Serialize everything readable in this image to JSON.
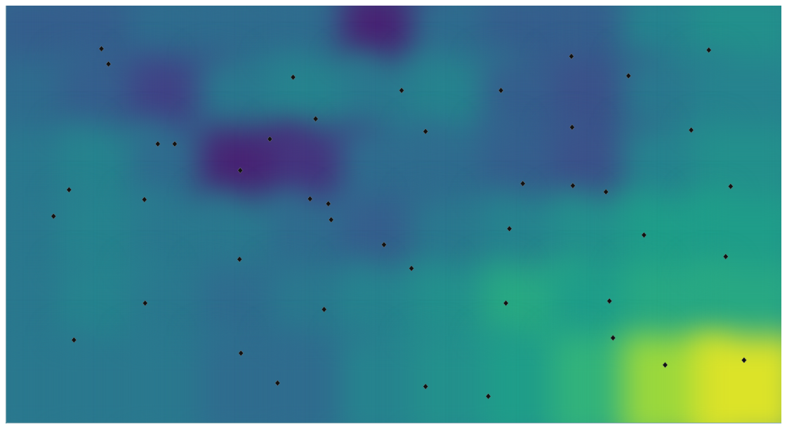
{
  "chart_data": {
    "type": "heatmap",
    "xlim": [
      0,
      1100
    ],
    "ylim": [
      0,
      600
    ],
    "tick_labels": false,
    "grid": false,
    "heatmap": {
      "x": [
        50,
        150,
        250,
        350,
        450,
        550,
        650,
        750,
        850,
        950,
        1050
      ],
      "y": [
        550,
        450,
        350,
        250,
        150,
        50
      ],
      "zlim": [
        0,
        1
      ],
      "cells": [
        [
          0.3,
          0.3,
          0.35,
          0.35,
          0.35,
          0.1,
          0.35,
          0.3,
          0.3,
          0.45,
          0.5
        ],
        [
          0.35,
          0.3,
          0.2,
          0.4,
          0.45,
          0.4,
          0.45,
          0.3,
          0.25,
          0.4,
          0.45
        ],
        [
          0.4,
          0.45,
          0.35,
          0.1,
          0.15,
          0.35,
          0.35,
          0.3,
          0.25,
          0.45,
          0.5
        ],
        [
          0.4,
          0.45,
          0.4,
          0.4,
          0.35,
          0.3,
          0.4,
          0.45,
          0.5,
          0.55,
          0.55
        ],
        [
          0.4,
          0.45,
          0.4,
          0.35,
          0.4,
          0.45,
          0.5,
          0.6,
          0.55,
          0.6,
          0.6
        ],
        [
          0.4,
          0.4,
          0.4,
          0.35,
          0.35,
          0.45,
          0.5,
          0.55,
          0.65,
          0.85,
          0.95
        ]
      ]
    },
    "series": [
      {
        "type": "scatter",
        "marker": "diamond",
        "color": "#111111",
        "x": [
          135,
          145,
          407,
          561,
          702,
          802,
          883,
          997,
          439,
          374,
          595,
          803,
          972,
          215,
          239,
          332,
          89,
          196,
          431,
          457,
          461,
          733,
          804,
          851,
          1028,
          67,
          714,
          905,
          536,
          1021,
          331,
          575,
          197,
          451,
          709,
          856,
          96,
          861,
          333,
          935,
          1047,
          385,
          595,
          684
        ],
        "values": [
          538,
          516,
          497,
          478,
          478,
          527,
          499,
          536,
          437,
          408,
          419,
          425,
          421,
          401,
          401,
          363,
          335,
          321,
          322,
          315,
          292,
          344,
          341,
          332,
          340,
          297,
          279,
          270,
          256,
          239,
          235,
          222,
          172,
          163,
          172,
          175,
          119,
          122,
          100,
          83,
          90,
          57,
          52,
          38
        ]
      }
    ]
  }
}
